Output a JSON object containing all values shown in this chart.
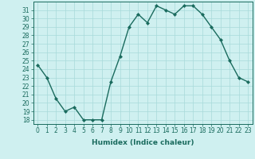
{
  "x": [
    0,
    1,
    2,
    3,
    4,
    5,
    6,
    7,
    8,
    9,
    10,
    11,
    12,
    13,
    14,
    15,
    16,
    17,
    18,
    19,
    20,
    21,
    22,
    23
  ],
  "y": [
    24.5,
    23,
    20.5,
    19,
    19.5,
    18,
    18,
    18,
    22.5,
    25.5,
    29,
    30.5,
    29.5,
    31.5,
    31,
    30.5,
    31.5,
    31.5,
    30.5,
    29,
    27.5,
    25,
    23,
    22.5
  ],
  "line_color": "#1a6b5e",
  "marker": "D",
  "marker_size": 2.0,
  "bg_color": "#cff0f0",
  "grid_color": "#a8dada",
  "xlabel": "Humidex (Indice chaleur)",
  "ylim": [
    17.5,
    32.0
  ],
  "yticks": [
    18,
    19,
    20,
    21,
    22,
    23,
    24,
    25,
    26,
    27,
    28,
    29,
    30,
    31
  ],
  "xticks": [
    0,
    1,
    2,
    3,
    4,
    5,
    6,
    7,
    8,
    9,
    10,
    11,
    12,
    13,
    14,
    15,
    16,
    17,
    18,
    19,
    20,
    21,
    22,
    23
  ],
  "xlim": [
    -0.5,
    23.5
  ],
  "tick_color": "#1a6b5e",
  "label_fontsize": 6.5,
  "tick_fontsize": 5.5,
  "line_width": 1.0
}
